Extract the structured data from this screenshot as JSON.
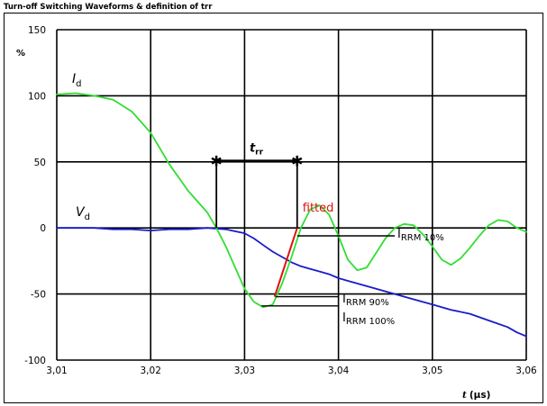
{
  "chart_data": {
    "type": "line",
    "title": "Turn-off  Switching Waveforms & definition of trr",
    "ylabel": "%",
    "xlabel_italic": "t",
    "xlabel_unit": "(µs)",
    "xlim": [
      3.01,
      3.06
    ],
    "ylim": [
      -100,
      150
    ],
    "x_ticks": [
      3.01,
      3.02,
      3.03,
      3.04,
      3.05,
      3.06
    ],
    "x_tick_labels": [
      "3,01",
      "3,02",
      "3,03",
      "3,04",
      "3,05",
      "3,06"
    ],
    "y_ticks": [
      -100,
      -50,
      0,
      50,
      100,
      150
    ],
    "y_tick_labels": [
      "-100",
      "-50",
      "0",
      "50",
      "100",
      "150"
    ],
    "grid": true,
    "series": [
      {
        "name": "Id",
        "label_main": "I",
        "label_sub": "d",
        "color": "#33dd33",
        "x": [
          3.01,
          3.012,
          3.014,
          3.016,
          3.018,
          3.02,
          3.022,
          3.024,
          3.026,
          3.027,
          3.028,
          3.029,
          3.03,
          3.031,
          3.032,
          3.033,
          3.034,
          3.035,
          3.036,
          3.037,
          3.038,
          3.039,
          3.04,
          3.041,
          3.042,
          3.043,
          3.044,
          3.045,
          3.046,
          3.047,
          3.048,
          3.049,
          3.05,
          3.051,
          3.052,
          3.053,
          3.054,
          3.055,
          3.056,
          3.057,
          3.058,
          3.059,
          3.06
        ],
        "y": [
          101,
          102,
          100,
          97,
          88,
          72,
          48,
          28,
          12,
          0,
          -14,
          -30,
          -46,
          -56,
          -60,
          -58,
          -42,
          -22,
          0,
          14,
          17,
          10,
          -6,
          -24,
          -32,
          -30,
          -19,
          -8,
          0,
          3,
          2,
          -5,
          -14,
          -24,
          -28,
          -23,
          -15,
          -6,
          2,
          6,
          5,
          0,
          -3
        ]
      },
      {
        "name": "Vd",
        "label_main": "V",
        "label_sub": "d",
        "color": "#1a1acc",
        "x": [
          3.01,
          3.012,
          3.014,
          3.016,
          3.018,
          3.02,
          3.022,
          3.024,
          3.026,
          3.028,
          3.03,
          3.031,
          3.032,
          3.033,
          3.034,
          3.035,
          3.036,
          3.037,
          3.038,
          3.039,
          3.04,
          3.042,
          3.044,
          3.046,
          3.048,
          3.05,
          3.052,
          3.054,
          3.056,
          3.058,
          3.059,
          3.06
        ],
        "y": [
          0,
          0,
          0,
          -1,
          -1,
          -2,
          -1,
          -1,
          0,
          -1,
          -4,
          -8,
          -13,
          -18,
          -22,
          -26,
          -29,
          -31,
          -33,
          -35,
          -38,
          -42,
          -46,
          -50,
          -54,
          -58,
          -62,
          -65,
          -70,
          -75,
          -79,
          -82
        ]
      }
    ],
    "fitted_line": {
      "label": "fitted",
      "color": "#dd1111",
      "x": [
        3.0332,
        3.0356
      ],
      "y": [
        -52,
        0
      ]
    },
    "trr_markers": {
      "label_main": "t",
      "label_sub": "rr",
      "x_start": 3.027,
      "x_end": 3.0356,
      "y_level": 51,
      "y_base": 0
    },
    "annotations": [
      {
        "id": "irrm10",
        "main": "I",
        "sub": "RRM 10%",
        "line_x": [
          3.0356,
          3.046
        ],
        "line_y": [
          -6,
          -6
        ]
      },
      {
        "id": "irrm90",
        "main": "I",
        "sub": "RRM 90%",
        "line_x": [
          3.0333,
          3.04
        ],
        "line_y": [
          -52,
          -52
        ]
      },
      {
        "id": "irrm100",
        "main": "I",
        "sub": "RRM 100%",
        "line_x": [
          3.0318,
          3.04
        ],
        "line_y": [
          -59,
          -59
        ]
      }
    ]
  }
}
